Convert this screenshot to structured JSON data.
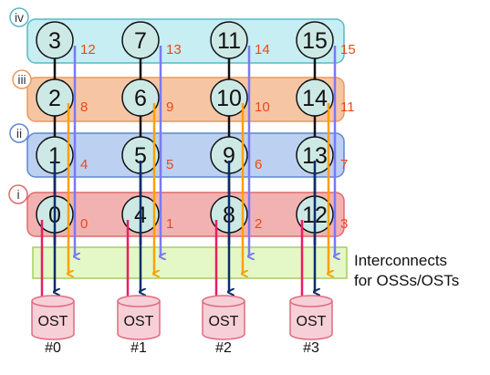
{
  "layers": [
    {
      "roman": "iv",
      "fill": "#c6eef3",
      "stroke": "#5bb7c6",
      "procs": [
        "3",
        "7",
        "11",
        "15"
      ],
      "offsets": [
        "12",
        "13",
        "14",
        "15"
      ]
    },
    {
      "roman": "iii",
      "fill": "#f6c6a4",
      "stroke": "#e89a5c",
      "procs": [
        "2",
        "6",
        "10",
        "14"
      ],
      "offsets": [
        "8",
        "9",
        "10",
        "11"
      ]
    },
    {
      "roman": "ii",
      "fill": "#bcd0f2",
      "stroke": "#5f86d2",
      "procs": [
        "1",
        "5",
        "9",
        "13"
      ],
      "offsets": [
        "4",
        "5",
        "6",
        "7"
      ]
    },
    {
      "roman": "i",
      "fill": "#f3b2b2",
      "stroke": "#e06a6a",
      "procs": [
        "0",
        "4",
        "8",
        "12"
      ],
      "offsets": [
        "0",
        "1",
        "2",
        "3"
      ]
    }
  ],
  "interconnect": {
    "line1": "Interconnects",
    "line2": "for OSSs/OSTs",
    "fill": "#e4f7c6",
    "stroke": "#a3cf60"
  },
  "osts": [
    {
      "label": "OST",
      "id": "#0"
    },
    {
      "label": "OST",
      "id": "#1"
    },
    {
      "label": "OST",
      "id": "#2"
    },
    {
      "label": "OST",
      "id": "#3"
    }
  ],
  "colors": {
    "process_fill": "#cde9e6",
    "offset_text": "#e64a19",
    "arrow_iv": "#7a7af0",
    "arrow_iii": "#ffa000",
    "arrow_ii": "#0b2d6b",
    "arrow_i": "#e91e63",
    "ost_fill": "#f7cfd7",
    "ost_stroke": "#e06b81"
  }
}
